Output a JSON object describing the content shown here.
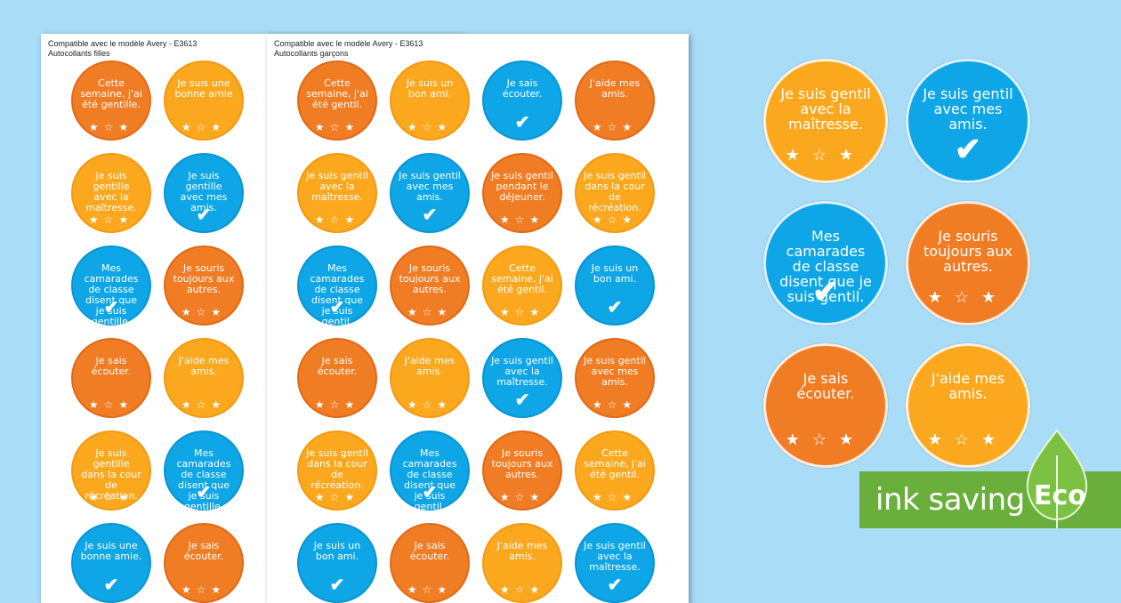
{
  "sheets": {
    "girls": {
      "header_line1": "Compatible avec le modèle Avery - E3613",
      "header_line2": "Autocollants filles",
      "stickers": [
        {
          "text": "Cette semaine, j'ai été gentille.",
          "color": "orange",
          "deco": "stars"
        },
        {
          "text": "Je suis une bonne amie",
          "color": "yellow",
          "deco": "stars"
        },
        {
          "text": "Je suis gentille avec la maîtresse.",
          "color": "yellow",
          "deco": "stars"
        },
        {
          "text": "Je suis gentille avec mes amis.",
          "color": "blue",
          "deco": "check"
        },
        {
          "text": "Mes camarades de classe disent que je suis gentille.",
          "color": "blue",
          "deco": "check"
        },
        {
          "text": "Je souris toujours aux autres.",
          "color": "orange",
          "deco": "stars"
        },
        {
          "text": "Je sais écouter.",
          "color": "orange",
          "deco": "stars"
        },
        {
          "text": "J'aide mes amis.",
          "color": "yellow",
          "deco": "stars"
        },
        {
          "text": "Je suis gentille dans la cour de récréation.",
          "color": "yellow",
          "deco": "stars"
        },
        {
          "text": "Mes camarades de classe disent que je suis gentille.",
          "color": "blue",
          "deco": "check"
        },
        {
          "text": "Je suis une bonne amie.",
          "color": "blue",
          "deco": "check"
        },
        {
          "text": "Je sais écouter.",
          "color": "orange",
          "deco": "stars"
        }
      ]
    },
    "boys": {
      "header_line1": "Compatible avec le modèle Avery - E3613",
      "header_line2": "Autocollants garçons",
      "stickers": [
        {
          "text": "Cette semaine, j'ai été gentil.",
          "color": "orange",
          "deco": "stars"
        },
        {
          "text": "Je suis un bon ami.",
          "color": "yellow",
          "deco": "stars"
        },
        {
          "text": "Je sais écouter.",
          "color": "blue",
          "deco": "check"
        },
        {
          "text": "J'aide mes amis.",
          "color": "orange",
          "deco": "stars"
        },
        {
          "text": "Je suis gentil avec la maîtresse.",
          "color": "yellow",
          "deco": "stars"
        },
        {
          "text": "Je suis gentil avec mes amis.",
          "color": "blue",
          "deco": "check"
        },
        {
          "text": "Je suis gentil pendant le déjeuner.",
          "color": "orange",
          "deco": "stars"
        },
        {
          "text": "Je suis gentil dans la cour de récréation.",
          "color": "yellow",
          "deco": "stars"
        },
        {
          "text": "Mes camarades de classe disent que je suis gentil.",
          "color": "blue",
          "deco": "check"
        },
        {
          "text": "Je souris toujours aux autres.",
          "color": "orange",
          "deco": "stars"
        },
        {
          "text": "Cette semaine, j'ai été gentil.",
          "color": "yellow",
          "deco": "stars"
        },
        {
          "text": "Je suis un bon ami.",
          "color": "blue",
          "deco": "check"
        },
        {
          "text": "Je sais écouter.",
          "color": "orange",
          "deco": "stars"
        },
        {
          "text": "J'aide mes amis.",
          "color": "yellow",
          "deco": "stars"
        },
        {
          "text": "Je suis gentil avec la maîtresse.",
          "color": "blue",
          "deco": "check"
        },
        {
          "text": "Je suis gentil avec mes amis.",
          "color": "orange",
          "deco": "stars"
        },
        {
          "text": "Je suis gentil dans la cour de récréation.",
          "color": "yellow",
          "deco": "stars"
        },
        {
          "text": "Mes camarades de classe disent que je suis gentil.",
          "color": "blue",
          "deco": "check"
        },
        {
          "text": "Je souris toujours aux autres.",
          "color": "orange",
          "deco": "stars"
        },
        {
          "text": "Cette semaine, j'ai été gentil.",
          "color": "yellow",
          "deco": "stars"
        },
        {
          "text": "Je suis un bon ami.",
          "color": "blue",
          "deco": "check"
        },
        {
          "text": "Je sais écouter.",
          "color": "orange",
          "deco": "stars"
        },
        {
          "text": "J'aide mes amis.",
          "color": "yellow",
          "deco": "stars"
        },
        {
          "text": "Je suis gentil avec la maîtresse.",
          "color": "blue",
          "deco": "check"
        }
      ]
    }
  },
  "preview_stickers": [
    {
      "text": "Je suis gentil avec la maîtresse.",
      "color": "yellow",
      "deco": "stars"
    },
    {
      "text": "Je suis gentil avec mes amis.",
      "color": "blue",
      "deco": "check"
    },
    {
      "text": "Mes camarades de classe disent que je suis gentil.",
      "color": "blue",
      "deco": "check"
    },
    {
      "text": "Je souris toujours aux autres.",
      "color": "orange",
      "deco": "stars"
    },
    {
      "text": "Je sais écouter.",
      "color": "orange",
      "deco": "stars"
    },
    {
      "text": "J'aide mes amis.",
      "color": "yellow",
      "deco": "stars"
    }
  ],
  "eco_banner": {
    "label": "ink saving",
    "badge": "Eco"
  },
  "colors": {
    "orange": "#f07c24",
    "yellow": "#fba81f",
    "blue": "#0ea6e6",
    "eco_green": "#6aae3c",
    "background": "#a9dcf6"
  },
  "icons": {
    "stars": "star-icon",
    "check": "checkmark-icon"
  }
}
